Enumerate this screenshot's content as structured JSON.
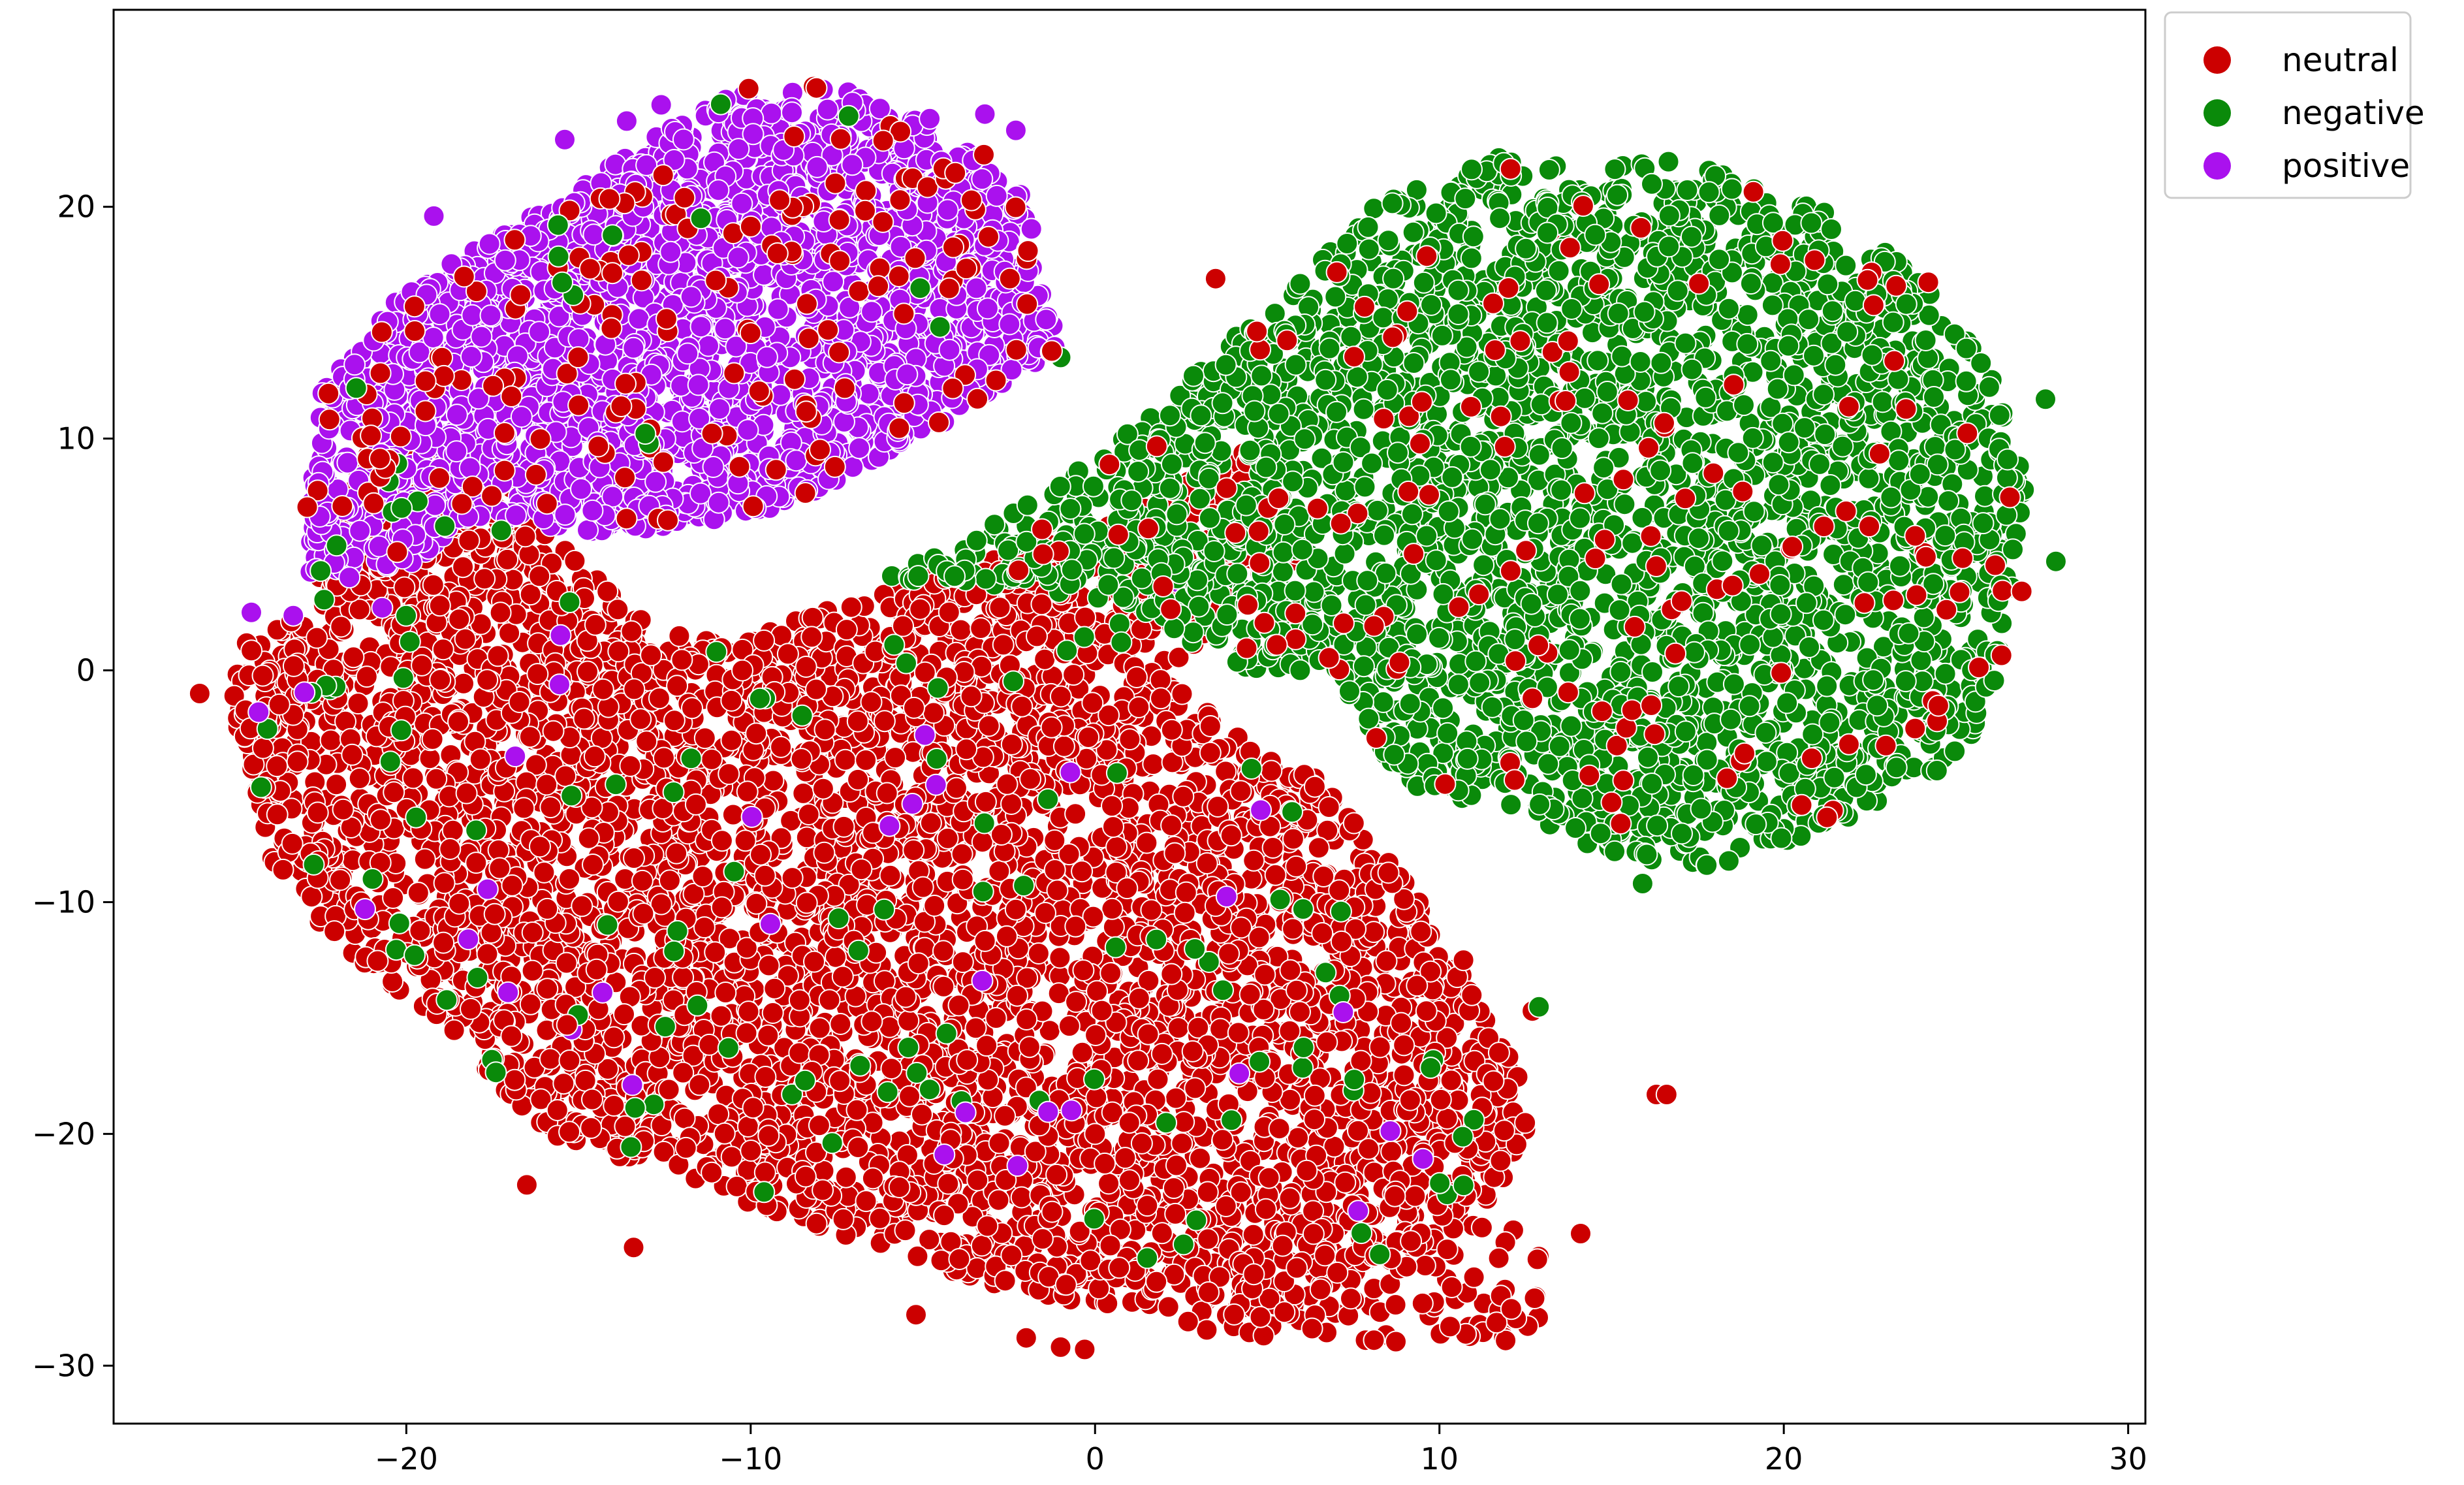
{
  "chart_data": {
    "type": "scatter",
    "title": "",
    "xlabel": "",
    "ylabel": "",
    "xlim": [
      -28.5,
      30.5
    ],
    "ylim": [
      -32.5,
      28.5
    ],
    "xticks": [
      -20,
      -10,
      0,
      10,
      20,
      30
    ],
    "yticks": [
      -30,
      -20,
      -10,
      0,
      10,
      20
    ],
    "xtick_labels": [
      "−20",
      "−10",
      "0",
      "10",
      "20",
      "30"
    ],
    "ytick_labels": [
      "−30",
      "−20",
      "−10",
      "0",
      "10",
      "20"
    ],
    "grid": false,
    "legend": {
      "placement": "upper-left-outside",
      "entries": [
        {
          "name": "neutral",
          "color": "#cc0000"
        },
        {
          "name": "negative",
          "color": "#0a8a0a"
        },
        {
          "name": "positive",
          "color": "#aa11ee"
        }
      ]
    },
    "series": [
      {
        "name": "neutral",
        "color": "#cc0000",
        "regions": [
          {
            "polygon": [
              [
                -23,
                3
              ],
              [
                -21,
                10
              ],
              [
                -18,
                10
              ],
              [
                -16,
                6
              ],
              [
                -13,
                2
              ],
              [
                -10,
                1.5
              ],
              [
                -5,
                4
              ],
              [
                0,
                6
              ],
              [
                5,
                10
              ],
              [
                6,
                5
              ],
              [
                2,
                0
              ],
              [
                6,
                -4
              ],
              [
                9,
                -9
              ],
              [
                11,
                -14
              ],
              [
                13,
                -19
              ],
              [
                11,
                -24
              ],
              [
                5,
                -28
              ],
              [
                -2,
                -27
              ],
              [
                -8,
                -24
              ],
              [
                -12,
                -22
              ],
              [
                -16,
                -20
              ],
              [
                -19,
                -15
              ],
              [
                -22,
                -12
              ],
              [
                -24,
                -8
              ],
              [
                -25,
                -2
              ],
              [
                -25,
                1
              ]
            ],
            "count": 5200
          },
          {
            "polygon": [
              [
                3,
                -24
              ],
              [
                13,
                -24
              ],
              [
                13,
                -29
              ],
              [
                3,
                -29
              ]
            ],
            "count": 120
          }
        ],
        "extra_points": [
          [
            -26,
            -1
          ],
          [
            -16.5,
            -22.2
          ],
          [
            -13.4,
            -24.9
          ],
          [
            -5.2,
            -27.8
          ],
          [
            -2,
            -28.8
          ],
          [
            -1,
            -29.2
          ],
          [
            -0.3,
            -29.3
          ],
          [
            2.7,
            -28.1
          ],
          [
            6.3,
            -28.4
          ],
          [
            8.1,
            -28.9
          ],
          [
            14.1,
            -24.3
          ],
          [
            16.3,
            -18.3
          ],
          [
            16.6,
            -18.3
          ],
          [
            13.3,
            18.9
          ],
          [
            3.5,
            16.9
          ],
          [
            10.7,
            -12.5
          ],
          [
            12.7,
            -14.7
          ],
          [
            1,
            -22
          ],
          [
            0,
            -20
          ],
          [
            -2,
            -18
          ]
        ]
      },
      {
        "name": "negative",
        "color": "#0a8a0a",
        "regions": [
          {
            "polygon": [
              [
                -6,
                4
              ],
              [
                0,
                9
              ],
              [
                3,
                13
              ],
              [
                6,
                17
              ],
              [
                8,
                20
              ],
              [
                12,
                22.3
              ],
              [
                17,
                22
              ],
              [
                21,
                20
              ],
              [
                24,
                17
              ],
              [
                26,
                13
              ],
              [
                27,
                8
              ],
              [
                26.5,
                2
              ],
              [
                26,
                -2
              ],
              [
                24,
                -5
              ],
              [
                21,
                -7
              ],
              [
                18,
                -8.5
              ],
              [
                15,
                -8
              ],
              [
                12,
                -6
              ],
              [
                9,
                -5
              ],
              [
                8,
                -3
              ],
              [
                7,
                0
              ],
              [
                4,
                0
              ],
              [
                2,
                2
              ],
              [
                -2,
                3.5
              ]
            ],
            "count": 4200
          }
        ],
        "extra_points": [
          [
            27.6,
            11.7
          ],
          [
            27.9,
            4.7
          ],
          [
            26.5,
            9.1
          ],
          [
            -1,
            13.5
          ],
          [
            20.8,
            19.3
          ],
          [
            15.9,
            -9.2
          ]
        ]
      },
      {
        "name": "positive",
        "color": "#aa11ee",
        "regions": [
          {
            "polygon": [
              [
                -22.5,
                12
              ],
              [
                -20,
                16.5
              ],
              [
                -17,
                19
              ],
              [
                -13,
                23
              ],
              [
                -10,
                25.3
              ],
              [
                -7,
                25
              ],
              [
                -4,
                23
              ],
              [
                -2,
                20.5
              ],
              [
                -1.5,
                16
              ],
              [
                -1,
                14
              ],
              [
                -4,
                11
              ],
              [
                -9,
                7
              ],
              [
                -13,
                6
              ],
              [
                -15,
                6
              ],
              [
                -18,
                6.5
              ],
              [
                -20,
                4.5
              ],
              [
                -23,
                4
              ]
            ],
            "count": 2400
          }
        ],
        "extra_points": [
          [
            -19.2,
            19.6
          ],
          [
            -15.4,
            22.9
          ],
          [
            -12.6,
            24.4
          ],
          [
            -13.6,
            23.7
          ],
          [
            -20.7,
            2.7
          ],
          [
            -24.5,
            2.5
          ],
          [
            -2.3,
            23.3
          ],
          [
            -4.8,
            23.8
          ],
          [
            -3.2,
            24.0
          ],
          [
            2.4,
            3.8
          ],
          [
            -18.2,
            -11.6
          ],
          [
            -15.2,
            -15.5
          ],
          [
            -21.2,
            -10.3
          ],
          [
            -14.3,
            -13.9
          ]
        ]
      }
    ]
  }
}
